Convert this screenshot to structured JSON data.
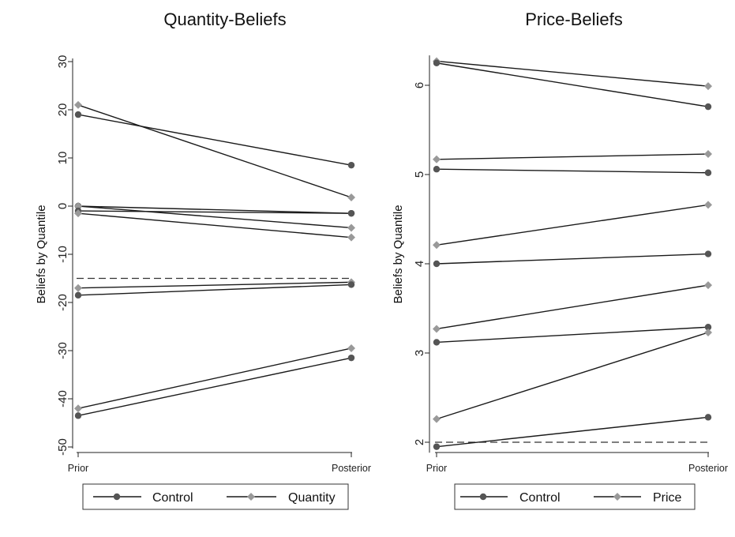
{
  "chart_data": [
    {
      "type": "line",
      "title": "Quantity-Beliefs",
      "xlabel": "",
      "ylabel": "Beliefs by Quantile",
      "categories": [
        "Prior",
        "Posterior"
      ],
      "ylim": [
        -50,
        30
      ],
      "yticks": [
        30,
        20,
        10,
        0,
        -10,
        -20,
        -30,
        -40,
        -50
      ],
      "grid": false,
      "reference_line": -15,
      "legend": {
        "placement": "bottom",
        "entries": [
          {
            "label": "Control",
            "marker": "circle",
            "color": "#555555"
          },
          {
            "label": "Quantity",
            "marker": "diamond",
            "color": "#999999"
          }
        ]
      },
      "series": [
        {
          "group": "Control",
          "values": [
            19,
            8.5
          ]
        },
        {
          "group": "Quantity",
          "values": [
            21,
            1.8
          ]
        },
        {
          "group": "Control",
          "values": [
            0,
            -1.5
          ]
        },
        {
          "group": "Quantity",
          "values": [
            0,
            -4.5
          ]
        },
        {
          "group": "Control",
          "values": [
            -1,
            -1.5
          ]
        },
        {
          "group": "Quantity",
          "values": [
            -1.5,
            -6.5
          ]
        },
        {
          "group": "Quantity",
          "values": [
            -17,
            -15.8
          ]
        },
        {
          "group": "Control",
          "values": [
            -18.5,
            -16.3
          ]
        },
        {
          "group": "Quantity",
          "values": [
            -42,
            -29.5
          ]
        },
        {
          "group": "Control",
          "values": [
            -43.5,
            -31.5
          ]
        }
      ]
    },
    {
      "type": "line",
      "title": "Price-Beliefs",
      "xlabel": "",
      "ylabel": "Beliefs by Quantile",
      "categories": [
        "Prior",
        "Posterior"
      ],
      "ylim": [
        1.9,
        6.3
      ],
      "yticks": [
        6,
        5,
        4,
        3,
        2
      ],
      "grid": false,
      "reference_line": 2,
      "legend": {
        "placement": "bottom",
        "entries": [
          {
            "label": "Control",
            "marker": "circle",
            "color": "#555555"
          },
          {
            "label": "Price",
            "marker": "diamond",
            "color": "#999999"
          }
        ]
      },
      "series": [
        {
          "group": "Price",
          "values": [
            6.27,
            5.99
          ]
        },
        {
          "group": "Control",
          "values": [
            6.25,
            5.76
          ]
        },
        {
          "group": "Price",
          "values": [
            5.17,
            5.23
          ]
        },
        {
          "group": "Control",
          "values": [
            5.06,
            5.02
          ]
        },
        {
          "group": "Price",
          "values": [
            4.21,
            4.66
          ]
        },
        {
          "group": "Control",
          "values": [
            4.0,
            4.11
          ]
        },
        {
          "group": "Price",
          "values": [
            3.27,
            3.76
          ]
        },
        {
          "group": "Control",
          "values": [
            3.12,
            3.29
          ]
        },
        {
          "group": "Price",
          "values": [
            2.26,
            3.23
          ]
        },
        {
          "group": "Control",
          "values": [
            1.95,
            2.28
          ]
        }
      ]
    }
  ]
}
